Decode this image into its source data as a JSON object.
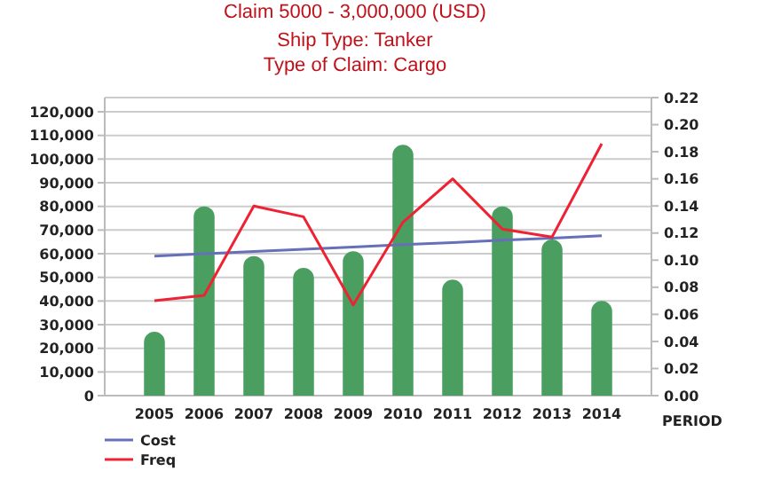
{
  "chart_data": {
    "type": "bar",
    "title": "Claim 5000 - 3,000,000 (USD)",
    "subtitle": "Ship Type: Tanker\nType of Claim: Cargo",
    "xlabel": "PERIOD",
    "categories": [
      "2005",
      "2006",
      "2007",
      "2008",
      "2009",
      "2010",
      "2011",
      "2012",
      "2013",
      "2014"
    ],
    "ylim": [
      0,
      126000
    ],
    "yticks": [
      {
        "value": 0,
        "label": "0"
      },
      {
        "value": 10000,
        "label": "10,000"
      },
      {
        "value": 20000,
        "label": "20,000"
      },
      {
        "value": 30000,
        "label": "30,000"
      },
      {
        "value": 40000,
        "label": "40,000"
      },
      {
        "value": 50000,
        "label": "50,000"
      },
      {
        "value": 60000,
        "label": "60,000"
      },
      {
        "value": 70000,
        "label": "70,000"
      },
      {
        "value": 80000,
        "label": "80,000"
      },
      {
        "value": 90000,
        "label": "90,000"
      },
      {
        "value": 100000,
        "label": "100,000"
      },
      {
        "value": 110000,
        "label": "110,000"
      },
      {
        "value": 120000,
        "label": "120,000"
      }
    ],
    "y2lim": [
      0,
      0.22
    ],
    "y2ticks": [
      {
        "value": 0,
        "label": "0.00"
      },
      {
        "value": 0.02,
        "label": "0.02"
      },
      {
        "value": 0.04,
        "label": "0.04"
      },
      {
        "value": 0.06,
        "label": "0.06"
      },
      {
        "value": 0.08,
        "label": "0.08"
      },
      {
        "value": 0.1,
        "label": "0.10"
      },
      {
        "value": 0.12,
        "label": "0.12"
      },
      {
        "value": 0.14,
        "label": "0.14"
      },
      {
        "value": 0.16,
        "label": "0.16"
      },
      {
        "value": 0.18,
        "label": "0.18"
      },
      {
        "value": 0.2,
        "label": "0.20"
      },
      {
        "value": 0.22,
        "label": "0.22"
      }
    ],
    "grid": "y",
    "legend": "bottom left",
    "series": [
      {
        "color": "#4a9e60",
        "values": [
          27000,
          80000,
          59000,
          54000,
          61000,
          106000,
          49000,
          80000,
          66000,
          40000
        ]
      },
      {
        "type": "line",
        "name": "Cost",
        "color": "#6670b8",
        "values": [
          59000,
          60000,
          60900,
          61900,
          62800,
          63800,
          64700,
          65700,
          66600,
          67600
        ]
      },
      {
        "type": "line",
        "name": "Freq",
        "color": "#ee2233",
        "axis": "y2",
        "values": [
          0.07,
          0.074,
          0.14,
          0.132,
          0.067,
          0.128,
          0.16,
          0.123,
          0.117,
          0.186
        ]
      }
    ]
  }
}
